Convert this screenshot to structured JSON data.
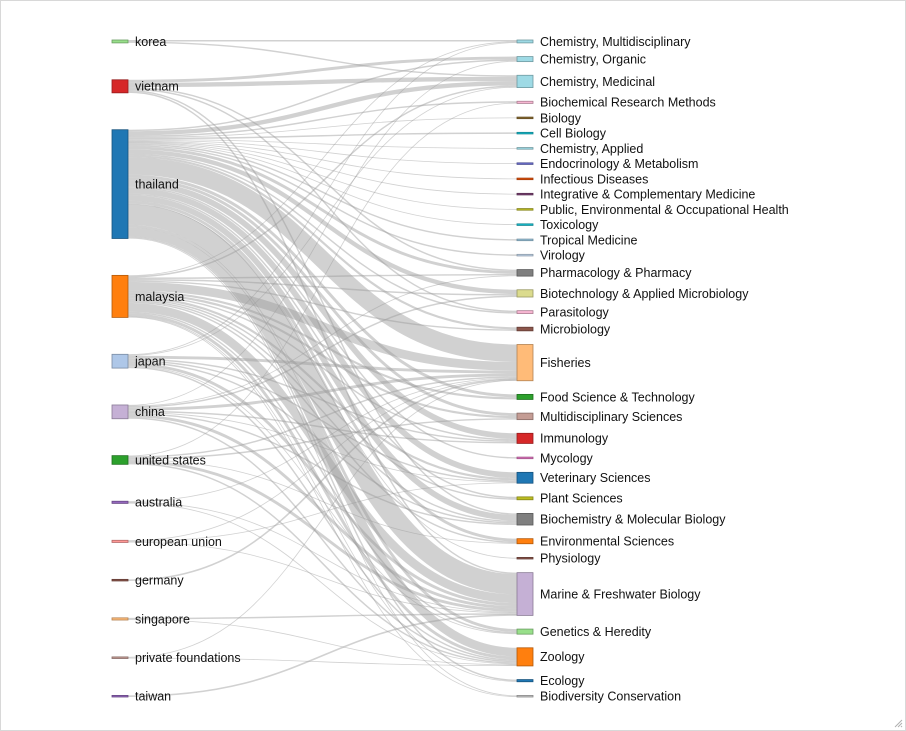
{
  "chart_data": {
    "type": "sankey",
    "title": "",
    "sources": [
      {
        "name": "korea",
        "color": "#98df8a"
      },
      {
        "name": "vietnam",
        "color": "#d62728"
      },
      {
        "name": "thailand",
        "color": "#1f77b4"
      },
      {
        "name": "malaysia",
        "color": "#ff7f0e"
      },
      {
        "name": "japan",
        "color": "#aec7e8"
      },
      {
        "name": "china",
        "color": "#c5b0d5"
      },
      {
        "name": "united states",
        "color": "#2ca02c"
      },
      {
        "name": "australia",
        "color": "#9467bd"
      },
      {
        "name": "european union",
        "color": "#ff9896"
      },
      {
        "name": "germany",
        "color": "#8c564b"
      },
      {
        "name": "singapore",
        "color": "#ffbb78"
      },
      {
        "name": "private foundations",
        "color": "#c49c94"
      },
      {
        "name": "taiwan",
        "color": "#9467bd"
      }
    ],
    "targets": [
      {
        "name": "Chemistry, Multidisciplinary",
        "color": "#9edae5"
      },
      {
        "name": "Chemistry, Organic",
        "color": "#9edae5"
      },
      {
        "name": "Chemistry, Medicinal",
        "color": "#9edae5"
      },
      {
        "name": "Biochemical Research Methods",
        "color": "#f7b6d2"
      },
      {
        "name": "Biology",
        "color": "#8c6d31"
      },
      {
        "name": "Cell Biology",
        "color": "#17becf"
      },
      {
        "name": "Chemistry, Applied",
        "color": "#9edae5"
      },
      {
        "name": "Endocrinology & Metabolism",
        "color": "#6b6ecf"
      },
      {
        "name": "Infectious Diseases",
        "color": "#e6550d"
      },
      {
        "name": "Integrative & Complementary Medicine",
        "color": "#7b4173"
      },
      {
        "name": "Public, Environmental & Occupational Health",
        "color": "#bcbd22"
      },
      {
        "name": "Toxicology",
        "color": "#17becf"
      },
      {
        "name": "Tropical Medicine",
        "color": "#9ecae1"
      },
      {
        "name": "Virology",
        "color": "#c6dbef"
      },
      {
        "name": "Pharmacology & Pharmacy",
        "color": "#7f7f7f"
      },
      {
        "name": "Biotechnology & Applied Microbiology",
        "color": "#dbdb8d"
      },
      {
        "name": "Parasitology",
        "color": "#f7b6d2"
      },
      {
        "name": "Microbiology",
        "color": "#8c564b"
      },
      {
        "name": "Fisheries",
        "color": "#ffbb78"
      },
      {
        "name": "Food Science & Technology",
        "color": "#2ca02c"
      },
      {
        "name": "Multidisciplinary Sciences",
        "color": "#c49c94"
      },
      {
        "name": "Immunology",
        "color": "#d62728"
      },
      {
        "name": "Mycology",
        "color": "#e377c2"
      },
      {
        "name": "Veterinary Sciences",
        "color": "#1f77b4"
      },
      {
        "name": "Plant Sciences",
        "color": "#bcbd22"
      },
      {
        "name": "Biochemistry & Molecular Biology",
        "color": "#7f7f7f"
      },
      {
        "name": "Environmental Sciences",
        "color": "#ff7f0e"
      },
      {
        "name": "Physiology",
        "color": "#8c564b"
      },
      {
        "name": "Marine & Freshwater Biology",
        "color": "#c5b0d5"
      },
      {
        "name": "Genetics & Heredity",
        "color": "#98df8a"
      },
      {
        "name": "Zoology",
        "color": "#ff7f0e"
      },
      {
        "name": "Ecology",
        "color": "#1f77b4"
      },
      {
        "name": "Biodiversity Conservation",
        "color": "#c7c7c7"
      }
    ],
    "links": [
      {
        "source": "korea",
        "target": "Chemistry, Multidisciplinary",
        "value": 1
      },
      {
        "source": "korea",
        "target": "Chemistry, Medicinal",
        "value": 1
      },
      {
        "source": "vietnam",
        "target": "Chemistry, Organic",
        "value": 2
      },
      {
        "source": "vietnam",
        "target": "Chemistry, Medicinal",
        "value": 3
      },
      {
        "source": "vietnam",
        "target": "Pharmacology & Pharmacy",
        "value": 1
      },
      {
        "source": "vietnam",
        "target": "Parasitology",
        "value": 1
      },
      {
        "source": "vietnam",
        "target": "Biochemistry & Molecular Biology",
        "value": 1
      },
      {
        "source": "vietnam",
        "target": "Marine & Freshwater Biology",
        "value": 1
      },
      {
        "source": "thailand",
        "target": "Chemistry, Organic",
        "value": 1
      },
      {
        "source": "thailand",
        "target": "Chemistry, Medicinal",
        "value": 3
      },
      {
        "source": "thailand",
        "target": "Biochemical Research Methods",
        "value": 1
      },
      {
        "source": "thailand",
        "target": "Biology",
        "value": 0.5
      },
      {
        "source": "thailand",
        "target": "Cell Biology",
        "value": 1
      },
      {
        "source": "thailand",
        "target": "Chemistry, Applied",
        "value": 0.5
      },
      {
        "source": "thailand",
        "target": "Endocrinology & Metabolism",
        "value": 0.5
      },
      {
        "source": "thailand",
        "target": "Infectious Diseases",
        "value": 0.5
      },
      {
        "source": "thailand",
        "target": "Integrative & Complementary Medicine",
        "value": 0.5
      },
      {
        "source": "thailand",
        "target": "Public, Environmental & Occupational Health",
        "value": 0.5
      },
      {
        "source": "thailand",
        "target": "Toxicology",
        "value": 0.5
      },
      {
        "source": "thailand",
        "target": "Tropical Medicine",
        "value": 1
      },
      {
        "source": "thailand",
        "target": "Virology",
        "value": 1
      },
      {
        "source": "thailand",
        "target": "Pharmacology & Pharmacy",
        "value": 2
      },
      {
        "source": "thailand",
        "target": "Biotechnology & Applied Microbiology",
        "value": 3
      },
      {
        "source": "thailand",
        "target": "Parasitology",
        "value": 1
      },
      {
        "source": "thailand",
        "target": "Microbiology",
        "value": 1.5
      },
      {
        "source": "thailand",
        "target": "Fisheries",
        "value": 12
      },
      {
        "source": "thailand",
        "target": "Food Science & Technology",
        "value": 2
      },
      {
        "source": "thailand",
        "target": "Multidisciplinary Sciences",
        "value": 2
      },
      {
        "source": "thailand",
        "target": "Immunology",
        "value": 4
      },
      {
        "source": "thailand",
        "target": "Mycology",
        "value": 1
      },
      {
        "source": "thailand",
        "target": "Veterinary Sciences",
        "value": 4
      },
      {
        "source": "thailand",
        "target": "Plant Sciences",
        "value": 1
      },
      {
        "source": "thailand",
        "target": "Biochemistry & Molecular Biology",
        "value": 4
      },
      {
        "source": "thailand",
        "target": "Environmental Sciences",
        "value": 2
      },
      {
        "source": "thailand",
        "target": "Physiology",
        "value": 0.5
      },
      {
        "source": "thailand",
        "target": "Marine & Freshwater Biology",
        "value": 14
      },
      {
        "source": "thailand",
        "target": "Genetics & Heredity",
        "value": 2
      },
      {
        "source": "thailand",
        "target": "Zoology",
        "value": 6
      },
      {
        "source": "thailand",
        "target": "Ecology",
        "value": 1
      },
      {
        "source": "thailand",
        "target": "Biodiversity Conservation",
        "value": 0.5
      },
      {
        "source": "malaysia",
        "target": "Chemistry, Multidisciplinary",
        "value": 0.5
      },
      {
        "source": "malaysia",
        "target": "Chemistry, Medicinal",
        "value": 1
      },
      {
        "source": "malaysia",
        "target": "Pharmacology & Pharmacy",
        "value": 1
      },
      {
        "source": "malaysia",
        "target": "Biotechnology & Applied Microbiology",
        "value": 1
      },
      {
        "source": "malaysia",
        "target": "Microbiology",
        "value": 1
      },
      {
        "source": "malaysia",
        "target": "Fisheries",
        "value": 6
      },
      {
        "source": "malaysia",
        "target": "Food Science & Technology",
        "value": 1.5
      },
      {
        "source": "malaysia",
        "target": "Multidisciplinary Sciences",
        "value": 1.5
      },
      {
        "source": "malaysia",
        "target": "Immunology",
        "value": 1
      },
      {
        "source": "malaysia",
        "target": "Veterinary Sciences",
        "value": 1.5
      },
      {
        "source": "malaysia",
        "target": "Plant Sciences",
        "value": 1
      },
      {
        "source": "malaysia",
        "target": "Biochemistry & Molecular Biology",
        "value": 1
      },
      {
        "source": "malaysia",
        "target": "Environmental Sciences",
        "value": 1
      },
      {
        "source": "malaysia",
        "target": "Marine & Freshwater Biology",
        "value": 6
      },
      {
        "source": "malaysia",
        "target": "Genetics & Heredity",
        "value": 1
      },
      {
        "source": "malaysia",
        "target": "Zoology",
        "value": 2
      },
      {
        "source": "malaysia",
        "target": "Ecology",
        "value": 0.5
      },
      {
        "source": "malaysia",
        "target": "Biodiversity Conservation",
        "value": 0.5
      },
      {
        "source": "japan",
        "target": "Chemistry, Multidisciplinary",
        "value": 0.5
      },
      {
        "source": "japan",
        "target": "Chemistry, Medicinal",
        "value": 0.5
      },
      {
        "source": "japan",
        "target": "Fisheries",
        "value": 2
      },
      {
        "source": "japan",
        "target": "Immunology",
        "value": 1
      },
      {
        "source": "japan",
        "target": "Veterinary Sciences",
        "value": 1
      },
      {
        "source": "japan",
        "target": "Biochemistry & Molecular Biology",
        "value": 1
      },
      {
        "source": "japan",
        "target": "Marine & Freshwater Biology",
        "value": 2
      },
      {
        "source": "japan",
        "target": "Genetics & Heredity",
        "value": 0.5
      },
      {
        "source": "japan",
        "target": "Zoology",
        "value": 1
      },
      {
        "source": "china",
        "target": "Chemistry, Organic",
        "value": 0.5
      },
      {
        "source": "china",
        "target": "Pharmacology & Pharmacy",
        "value": 0.5
      },
      {
        "source": "china",
        "target": "Biotechnology & Applied Microbiology",
        "value": 1
      },
      {
        "source": "china",
        "target": "Fisheries",
        "value": 2
      },
      {
        "source": "china",
        "target": "Immunology",
        "value": 1
      },
      {
        "source": "china",
        "target": "Veterinary Sciences",
        "value": 0.5
      },
      {
        "source": "china",
        "target": "Biochemistry & Molecular Biology",
        "value": 1
      },
      {
        "source": "china",
        "target": "Marine & Freshwater Biology",
        "value": 2
      },
      {
        "source": "china",
        "target": "Zoology",
        "value": 1
      },
      {
        "source": "united states",
        "target": "Biochemical Research Methods",
        "value": 0.5
      },
      {
        "source": "united states",
        "target": "Multidisciplinary Sciences",
        "value": 1
      },
      {
        "source": "united states",
        "target": "Fisheries",
        "value": 1
      },
      {
        "source": "united states",
        "target": "Environmental Sciences",
        "value": 0.5
      },
      {
        "source": "united states",
        "target": "Marine & Freshwater Biology",
        "value": 2
      },
      {
        "source": "united states",
        "target": "Zoology",
        "value": 1
      },
      {
        "source": "australia",
        "target": "Fisheries",
        "value": 0.5
      },
      {
        "source": "australia",
        "target": "Marine & Freshwater Biology",
        "value": 0.5
      },
      {
        "source": "australia",
        "target": "Zoology",
        "value": 0.5
      },
      {
        "source": "european union",
        "target": "Fisheries",
        "value": 0.5
      },
      {
        "source": "european union",
        "target": "Veterinary Sciences",
        "value": 0.5
      },
      {
        "source": "european union",
        "target": "Marine & Freshwater Biology",
        "value": 0.5
      },
      {
        "source": "germany",
        "target": "Fisheries",
        "value": 0.5
      },
      {
        "source": "singapore",
        "target": "Marine & Freshwater Biology",
        "value": 1
      },
      {
        "source": "singapore",
        "target": "Zoology",
        "value": 0.5
      },
      {
        "source": "private foundations",
        "target": "Fisheries",
        "value": 0.5
      },
      {
        "source": "private foundations",
        "target": "Zoology",
        "value": 0.5
      },
      {
        "source": "taiwan",
        "target": "Marine & Freshwater Biology",
        "value": 0.5
      }
    ]
  }
}
